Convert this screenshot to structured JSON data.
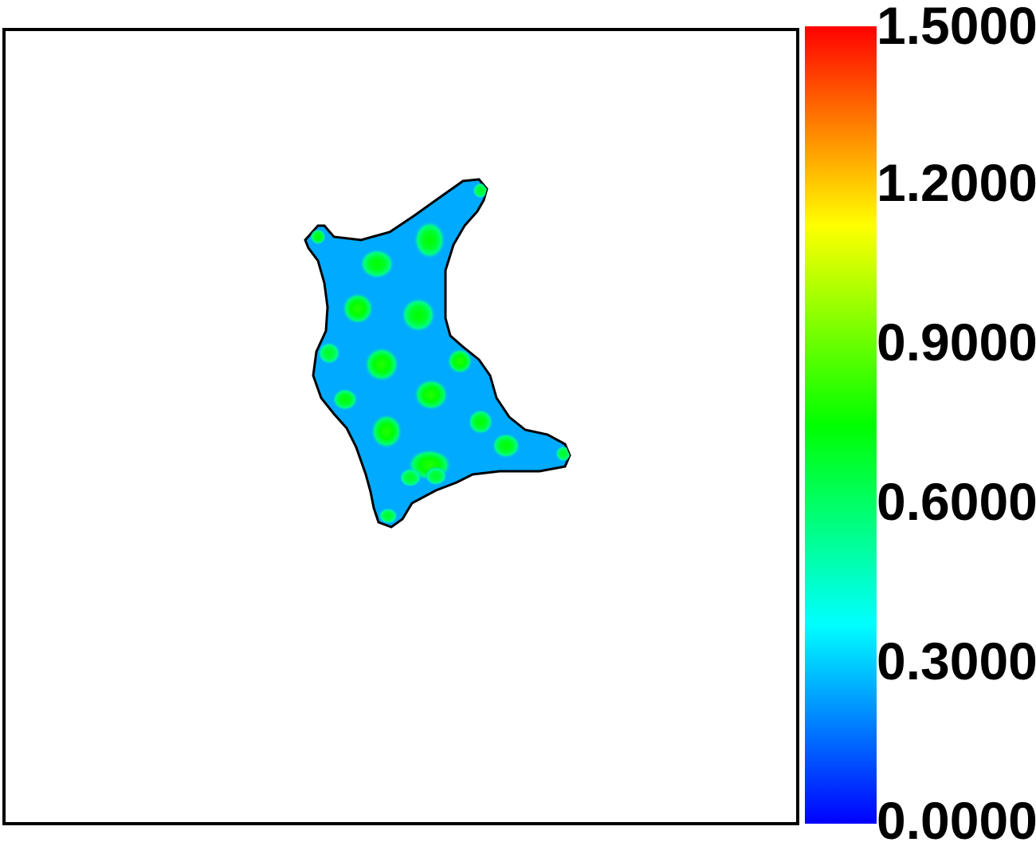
{
  "chart_data": {
    "type": "heatmap",
    "title": "",
    "xlabel": "",
    "ylabel": "",
    "colorbar": {
      "min": 0.0,
      "max": 1.5,
      "ticks": [
        "1.5000",
        "1.2000",
        "0.9000",
        "0.6000",
        "0.3000",
        "0.0000"
      ],
      "colormap": [
        "#0000ff",
        "#0080ff",
        "#00ffff",
        "#00ff80",
        "#00ff00",
        "#80ff00",
        "#ffff00",
        "#ff8000",
        "#ff0000"
      ]
    },
    "field": {
      "background_value": 0.25,
      "outline_color": "#000000",
      "peak_values": [
        0.75,
        0.75,
        0.8,
        0.75,
        0.8,
        0.8,
        0.7,
        0.75,
        0.8,
        0.75,
        0.75,
        0.8,
        0.8,
        0.75,
        0.7,
        0.7,
        0.7,
        0.7,
        0.7
      ]
    }
  }
}
